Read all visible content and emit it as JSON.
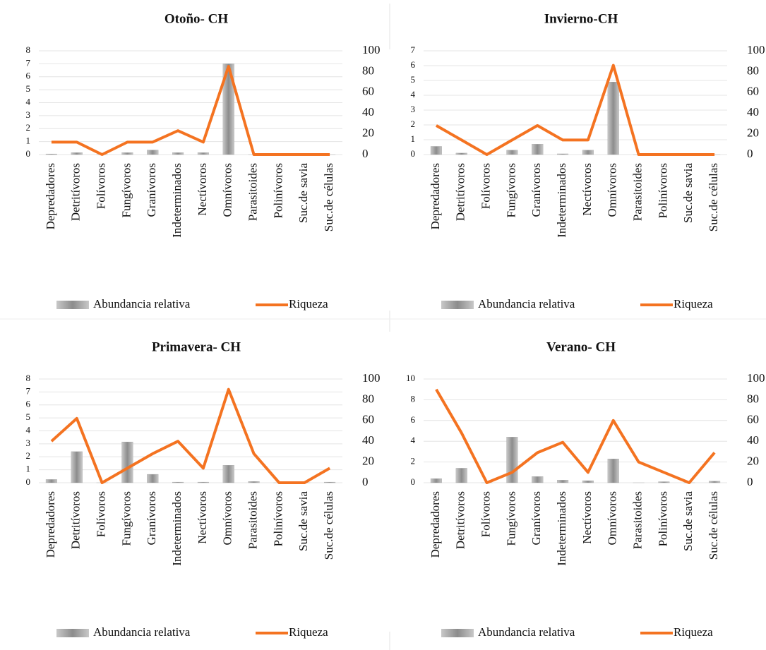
{
  "chart_data": [
    {
      "type": "bar-line",
      "title": "Otoño- CH",
      "categories": [
        "Depredadores",
        "Detritívoros",
        "Folívoros",
        "Fungívoros",
        "Granívoros",
        "Indeterminados",
        "Nectívoros",
        "Omnívoros",
        "Parasitoides",
        "Polinívoros",
        "Suc.de savia",
        "Suc.de células"
      ],
      "series": [
        {
          "name": "Abundancia relativa",
          "color": "#9a9a9a",
          "values": [
            0.05,
            0.15,
            0,
            0.15,
            0.35,
            0.15,
            0.15,
            7,
            0,
            0,
            0,
            0
          ]
        },
        {
          "name": "Riqueza",
          "color": "#f47321",
          "axis": "y2",
          "values": [
            12,
            12,
            0,
            12,
            12,
            23,
            12,
            85,
            0,
            0,
            0,
            0
          ]
        }
      ],
      "ylim": [
        0,
        8
      ],
      "yticks": [
        0,
        1,
        2,
        3,
        4,
        5,
        6,
        7,
        8
      ],
      "y2lim": [
        0,
        100
      ],
      "y2ticks": [
        0,
        20,
        40,
        60,
        80,
        100
      ],
      "grid": true,
      "legend": "bottom"
    },
    {
      "type": "bar-line",
      "title": "Invierno-CH",
      "categories": [
        "Depredadores",
        "Detritívoros",
        "Folívoros",
        "Fungívoros",
        "Granívoros",
        "Indeterminados",
        "Nectívoros",
        "Omnívoros",
        "Parasitoides",
        "Polinívoros",
        "Suc.de savia",
        "Suc.de células"
      ],
      "series": [
        {
          "name": "Abundancia relativa",
          "color": "#9a9a9a",
          "values": [
            0.55,
            0.1,
            0,
            0.3,
            0.7,
            0.05,
            0.3,
            4.9,
            0,
            0,
            0,
            0
          ]
        },
        {
          "name": "Riqueza",
          "color": "#f47321",
          "axis": "y2",
          "values": [
            28,
            14,
            0,
            14,
            28,
            14,
            14,
            86,
            0,
            0,
            0,
            0
          ]
        }
      ],
      "ylim": [
        0,
        7
      ],
      "yticks": [
        0,
        1,
        2,
        3,
        4,
        5,
        6,
        7
      ],
      "y2lim": [
        0,
        100
      ],
      "y2ticks": [
        0,
        20,
        40,
        60,
        80,
        100
      ],
      "grid": true,
      "legend": "bottom"
    },
    {
      "type": "bar-line",
      "title": "Primavera- CH",
      "categories": [
        "Depredadores",
        "Detritívoros",
        "Folívoros",
        "Fungívoros",
        "Granívoros",
        "Indeterminados",
        "Nectívoros",
        "Omnívoros",
        "Parasitoides",
        "Polinívoros",
        "Suc.de savia",
        "Suc.de células"
      ],
      "series": [
        {
          "name": "Abundancia relativa",
          "color": "#9a9a9a",
          "values": [
            0.25,
            2.4,
            0,
            3.15,
            0.65,
            0.05,
            0.05,
            1.35,
            0.1,
            0,
            0,
            0.05
          ]
        },
        {
          "name": "Riqueza",
          "color": "#f47321",
          "axis": "y2",
          "values": [
            40,
            62,
            0,
            14,
            28,
            40,
            14,
            90,
            28,
            0,
            0,
            14
          ]
        }
      ],
      "ylim": [
        0,
        8
      ],
      "yticks": [
        0,
        1,
        2,
        3,
        4,
        5,
        6,
        7,
        8
      ],
      "y2lim": [
        0,
        100
      ],
      "y2ticks": [
        0,
        20,
        40,
        60,
        80,
        100
      ],
      "grid": true,
      "legend": "bottom"
    },
    {
      "type": "bar-line",
      "title": "Verano- CH",
      "categories": [
        "Depredadores",
        "Detritívoros",
        "Folívoros",
        "Fungívoros",
        "Granívoros",
        "Indeterminados",
        "Nectívoros",
        "Omnívoros",
        "Parasitoides",
        "Polinívoros",
        "Suc.de savia",
        "Suc.de células"
      ],
      "series": [
        {
          "name": "Abundancia relativa",
          "color": "#9a9a9a",
          "values": [
            0.4,
            1.4,
            0,
            4.4,
            0.6,
            0.25,
            0.2,
            2.3,
            0,
            0.1,
            0,
            0.15
          ]
        },
        {
          "name": "Riqueza",
          "color": "#f47321",
          "axis": "y2",
          "values": [
            90,
            48,
            0,
            10,
            29,
            39,
            10,
            60,
            20,
            10,
            0,
            29
          ]
        }
      ],
      "ylim": [
        0,
        10
      ],
      "yticks": [
        0,
        2,
        4,
        6,
        8,
        10
      ],
      "y2lim": [
        0,
        100
      ],
      "y2ticks": [
        0,
        20,
        40,
        60,
        80,
        100
      ],
      "grid": true,
      "legend": "bottom"
    }
  ]
}
